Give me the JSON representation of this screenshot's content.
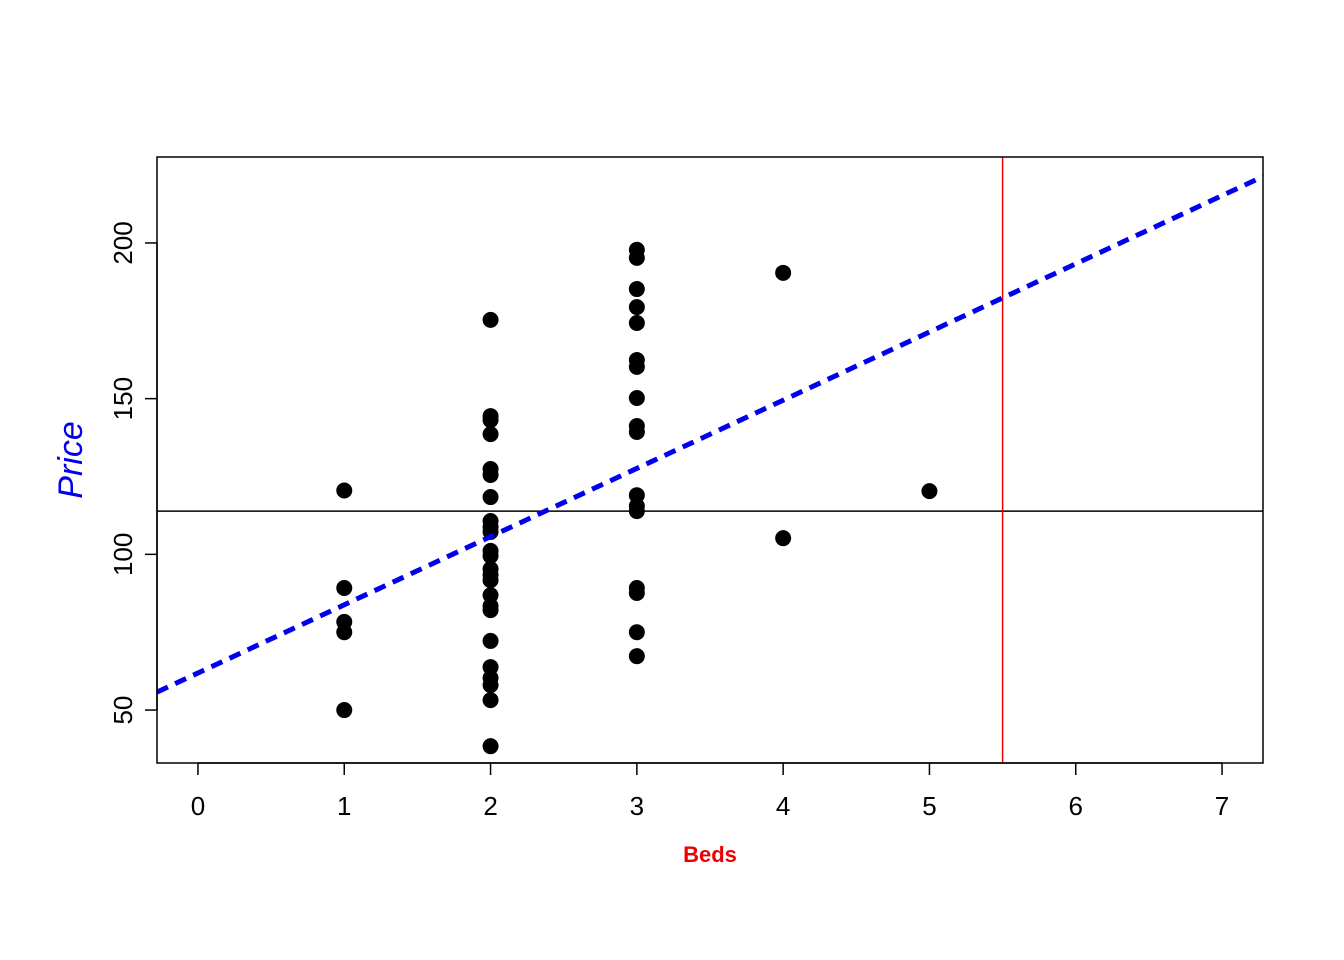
{
  "chart_data": {
    "type": "scatter",
    "x_label": "Beds",
    "x_label_color": "#ee0000",
    "y_label": "Price",
    "y_label_color": "#0000ee",
    "x": [
      1,
      1,
      1,
      1,
      1,
      2,
      2,
      2,
      2,
      2,
      2,
      2,
      2,
      2,
      2,
      2,
      2,
      2,
      2,
      2,
      2,
      2,
      2,
      2,
      2,
      2,
      2,
      2,
      2,
      3,
      3,
      3,
      3,
      3,
      3,
      3,
      3,
      3,
      3,
      3,
      3,
      3,
      3,
      3,
      3,
      3,
      4,
      4,
      5
    ],
    "values": [
      120.5,
      89.2,
      78.3,
      75.0,
      50,
      175.3,
      144.4,
      143.1,
      138.6,
      127.4,
      125.5,
      118.4,
      110.7,
      108.8,
      107.2,
      101.1,
      99.5,
      95.3,
      93.4,
      91.7,
      86.9,
      83.4,
      82.1,
      72.2,
      63.8,
      60.3,
      58.0,
      53.2,
      38.4,
      197.8,
      195.2,
      185.2,
      179.4,
      174.3,
      162.4,
      160.2,
      150.2,
      141.2,
      139.3,
      119.0,
      115.5,
      113.9,
      89.2,
      87.6,
      75.0,
      67.3,
      190.4,
      105.2,
      120.3
    ],
    "color": "#000000",
    "xlim": [
      -0.28,
      7.28
    ],
    "ylim": [
      33,
      227.6
    ],
    "xticks": [
      0,
      1,
      2,
      3,
      4,
      5,
      6,
      7
    ],
    "yticks": [
      50,
      100,
      150,
      200
    ],
    "hline": {
      "value": 113.9,
      "color": "#000000"
    },
    "vline": {
      "value": 5.5,
      "color": "#ee0000"
    },
    "abline": {
      "intercept": 61.9,
      "slope": 21.9,
      "color": "#0000ee",
      "dashed": true
    }
  }
}
